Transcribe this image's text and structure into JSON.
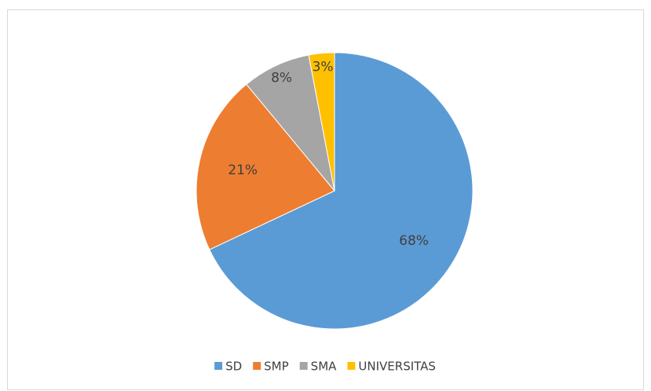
{
  "chart_data": {
    "type": "pie",
    "categories": [
      "SD",
      "SMP",
      "SMA",
      "UNIVERSITAS"
    ],
    "values": [
      68,
      21,
      8,
      3
    ],
    "value_labels": [
      "68%",
      "21%",
      "8%",
      "3%"
    ],
    "colors": [
      "#5b9bd5",
      "#ed7d31",
      "#a5a5a5",
      "#ffc000"
    ],
    "legend": "bottom"
  }
}
